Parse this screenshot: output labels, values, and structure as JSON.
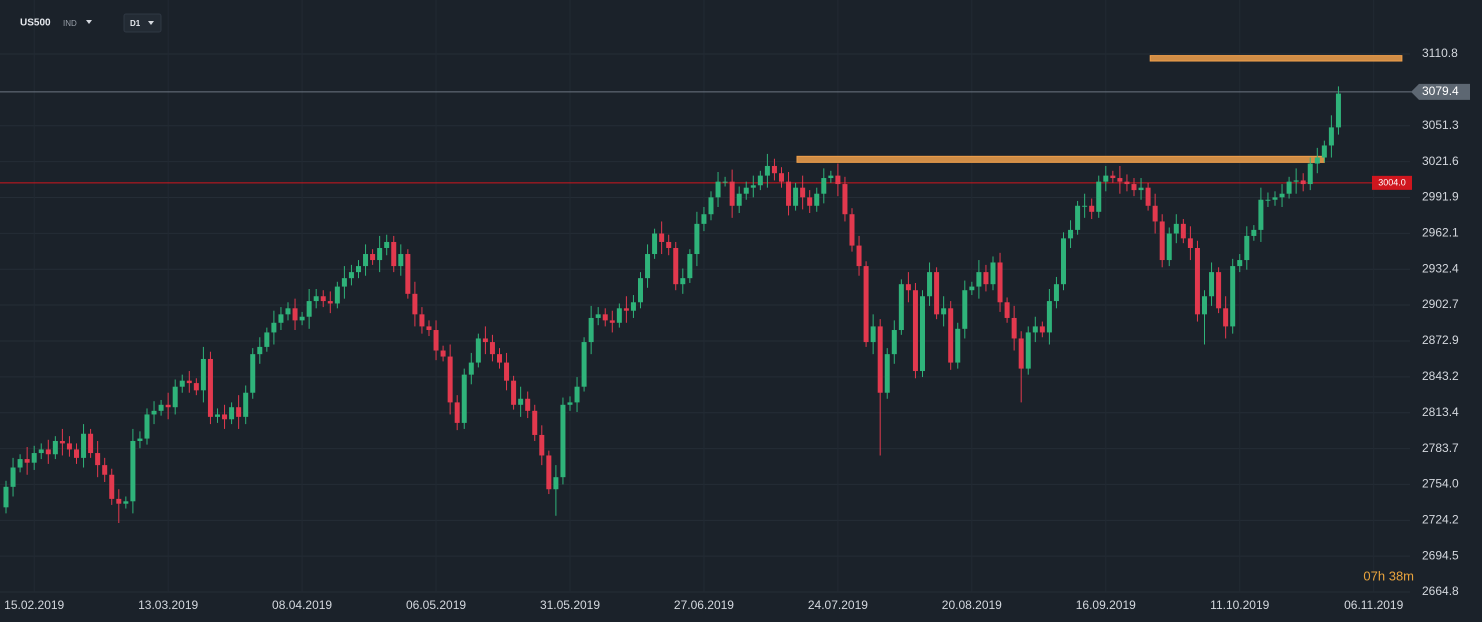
{
  "chart_data": {
    "type": "candlestick",
    "symbol": "US500",
    "instrument_type": "IND",
    "timeframe": "D1",
    "countdown": "07h 38m",
    "up_color": "#2fb37a",
    "down_color": "#e2394e",
    "grid": true,
    "xlim": [
      -0.85,
      199.15
    ],
    "ylim": [
      2664.8,
      3155.6
    ],
    "xticks": [
      {
        "value": 4,
        "label": "15.02.2019"
      },
      {
        "value": 23,
        "label": "13.03.2019"
      },
      {
        "value": 42,
        "label": "08.04.2019"
      },
      {
        "value": 61,
        "label": "06.05.2019"
      },
      {
        "value": 80,
        "label": "31.05.2019"
      },
      {
        "value": 99,
        "label": "27.06.2019"
      },
      {
        "value": 118,
        "label": "24.07.2019"
      },
      {
        "value": 137,
        "label": "20.08.2019"
      },
      {
        "value": 156,
        "label": "16.09.2019"
      },
      {
        "value": 175,
        "label": "11.10.2019"
      },
      {
        "value": 194,
        "label": "06.11.2019"
      }
    ],
    "yticks": [
      3110.8,
      3051.3,
      3021.6,
      2991.9,
      2962.1,
      2932.4,
      2902.7,
      2872.9,
      2843.2,
      2813.4,
      2783.7,
      {
        "value": 2754,
        "label": "2754.0"
      },
      2724.2,
      2694.5,
      2664.8
    ],
    "current_price": 3079.4,
    "alert_level": {
      "value": 3004,
      "label": "3004.0",
      "color": "#d0161e"
    },
    "zones": [
      {
        "top": 3109.5,
        "bottom": 3105,
        "start": 162.3,
        "end": 198,
        "color": "#f0a04b"
      },
      {
        "top": 3026,
        "bottom": 3021,
        "start": 112.2,
        "end": 187,
        "color": "#f0a04b"
      }
    ],
    "ohlc": [
      [
        2735,
        2757,
        2730,
        2752
      ],
      [
        2752,
        2776,
        2744,
        2768
      ],
      [
        2768,
        2779,
        2764,
        2775
      ],
      [
        2775,
        2785,
        2762,
        2772
      ],
      [
        2772,
        2786,
        2766,
        2780
      ],
      [
        2780,
        2788,
        2775,
        2783
      ],
      [
        2783,
        2791,
        2771,
        2779
      ],
      [
        2779,
        2794,
        2775,
        2790
      ],
      [
        2790,
        2800,
        2778,
        2788
      ],
      [
        2788,
        2794,
        2777,
        2783
      ],
      [
        2783,
        2788,
        2771,
        2776
      ],
      [
        2776,
        2804,
        2768,
        2796
      ],
      [
        2796,
        2800,
        2776,
        2780
      ],
      [
        2780,
        2790,
        2760,
        2770
      ],
      [
        2770,
        2776,
        2756,
        2762
      ],
      [
        2762,
        2767,
        2737,
        2742
      ],
      [
        2742,
        2750,
        2722,
        2738
      ],
      [
        2738,
        2744,
        2734,
        2740
      ],
      [
        2740,
        2800,
        2730,
        2790
      ],
      [
        2790,
        2798,
        2784,
        2792
      ],
      [
        2792,
        2817,
        2787,
        2812
      ],
      [
        2812,
        2823,
        2804,
        2815
      ],
      [
        2815,
        2824,
        2811,
        2820
      ],
      [
        2820,
        2830,
        2808,
        2818
      ],
      [
        2818,
        2841,
        2812,
        2835
      ],
      [
        2835,
        2845,
        2830,
        2840
      ],
      [
        2840,
        2848,
        2830,
        2838
      ],
      [
        2838,
        2842,
        2828,
        2832
      ],
      [
        2832,
        2868,
        2822,
        2858
      ],
      [
        2858,
        2864,
        2804,
        2810
      ],
      [
        2810,
        2817,
        2805,
        2812
      ],
      [
        2812,
        2820,
        2800,
        2808
      ],
      [
        2808,
        2822,
        2804,
        2818
      ],
      [
        2818,
        2828,
        2800,
        2810
      ],
      [
        2810,
        2836,
        2804,
        2830
      ],
      [
        2830,
        2867,
        2825,
        2862
      ],
      [
        2862,
        2876,
        2854,
        2868
      ],
      [
        2868,
        2884,
        2864,
        2880
      ],
      [
        2880,
        2898,
        2870,
        2888
      ],
      [
        2888,
        2901,
        2882,
        2895
      ],
      [
        2895,
        2905,
        2890,
        2900
      ],
      [
        2900,
        2908,
        2882,
        2890
      ],
      [
        2890,
        2897,
        2886,
        2893
      ],
      [
        2893,
        2916,
        2883,
        2906
      ],
      [
        2906,
        2916,
        2900,
        2910
      ],
      [
        2910,
        2915,
        2901,
        2906
      ],
      [
        2906,
        2914,
        2896,
        2904
      ],
      [
        2904,
        2922,
        2900,
        2918
      ],
      [
        2918,
        2935,
        2908,
        2925
      ],
      [
        2925,
        2936,
        2919,
        2930
      ],
      [
        2930,
        2940,
        2925,
        2935
      ],
      [
        2935,
        2953,
        2927,
        2945
      ],
      [
        2945,
        2949,
        2936,
        2940
      ],
      [
        2940,
        2960,
        2930,
        2950
      ],
      [
        2950,
        2961,
        2944,
        2955
      ],
      [
        2955,
        2960,
        2930,
        2935
      ],
      [
        2935,
        2953,
        2927,
        2945
      ],
      [
        2945,
        2949,
        2908,
        2912
      ],
      [
        2912,
        2922,
        2885,
        2895
      ],
      [
        2895,
        2901,
        2879,
        2885
      ],
      [
        2885,
        2890,
        2877,
        2882
      ],
      [
        2882,
        2890,
        2857,
        2865
      ],
      [
        2865,
        2869,
        2856,
        2860
      ],
      [
        2860,
        2870,
        2812,
        2822
      ],
      [
        2822,
        2828,
        2799,
        2805
      ],
      [
        2805,
        2850,
        2800,
        2845
      ],
      [
        2845,
        2863,
        2837,
        2855
      ],
      [
        2855,
        2879,
        2851,
        2875
      ],
      [
        2875,
        2885,
        2862,
        2872
      ],
      [
        2872,
        2878,
        2856,
        2862
      ],
      [
        2862,
        2867,
        2850,
        2855
      ],
      [
        2855,
        2863,
        2832,
        2840
      ],
      [
        2840,
        2844,
        2816,
        2820
      ],
      [
        2820,
        2835,
        2810,
        2825
      ],
      [
        2825,
        2831,
        2809,
        2815
      ],
      [
        2815,
        2820,
        2790,
        2795
      ],
      [
        2795,
        2803,
        2770,
        2778
      ],
      [
        2778,
        2782,
        2746,
        2750
      ],
      [
        2750,
        2770,
        2728,
        2760
      ],
      [
        2760,
        2826,
        2754,
        2820
      ],
      [
        2820,
        2827,
        2815,
        2822
      ],
      [
        2822,
        2843,
        2814,
        2835
      ],
      [
        2835,
        2876,
        2831,
        2872
      ],
      [
        2872,
        2902,
        2862,
        2892
      ],
      [
        2892,
        2901,
        2886,
        2895
      ],
      [
        2895,
        2900,
        2885,
        2890
      ],
      [
        2890,
        2898,
        2880,
        2888
      ],
      [
        2888,
        2904,
        2884,
        2900
      ],
      [
        2900,
        2910,
        2888,
        2898
      ],
      [
        2898,
        2911,
        2892,
        2905
      ],
      [
        2905,
        2930,
        2900,
        2925
      ],
      [
        2925,
        2953,
        2917,
        2945
      ],
      [
        2945,
        2966,
        2941,
        2962
      ],
      [
        2962,
        2972,
        2945,
        2955
      ],
      [
        2955,
        2961,
        2944,
        2950
      ],
      [
        2950,
        2955,
        2915,
        2920
      ],
      [
        2920,
        2933,
        2912,
        2925
      ],
      [
        2925,
        2949,
        2921,
        2945
      ],
      [
        2945,
        2980,
        2935,
        2970
      ],
      [
        2970,
        2984,
        2964,
        2978
      ],
      [
        2978,
        2997,
        2973,
        2992
      ],
      [
        2992,
        3013,
        2984,
        3005
      ],
      [
        3005,
        3009,
        3001,
        3005
      ],
      [
        3005,
        3015,
        2975,
        2985
      ],
      [
        2985,
        3001,
        2979,
        2995
      ],
      [
        2995,
        3005,
        2990,
        3000
      ],
      [
        3000,
        3010,
        2992,
        3002
      ],
      [
        3002,
        3014,
        2998,
        3010
      ],
      [
        3010,
        3028,
        3000,
        3018
      ],
      [
        3018,
        3024,
        3006,
        3012
      ],
      [
        3012,
        3017,
        3000,
        3005
      ],
      [
        3005,
        3013,
        2977,
        2985
      ],
      [
        2985,
        3004,
        2981,
        3000
      ],
      [
        3000,
        3010,
        2982,
        2992
      ],
      [
        2992,
        2998,
        2979,
        2985
      ],
      [
        2985,
        3000,
        2980,
        2995
      ],
      [
        2995,
        3016,
        2987,
        3008
      ],
      [
        3008,
        3014,
        3004,
        3010
      ],
      [
        3010,
        3020,
        2993,
        3003
      ],
      [
        3003,
        3009,
        2972,
        2978
      ],
      [
        2978,
        2983,
        2947,
        2952
      ],
      [
        2952,
        2960,
        2927,
        2935
      ],
      [
        2935,
        2939,
        2868,
        2872
      ],
      [
        2872,
        2895,
        2862,
        2885
      ],
      [
        2885,
        2891,
        2778,
        2830
      ],
      [
        2830,
        2867,
        2825,
        2862
      ],
      [
        2862,
        2890,
        2854,
        2882
      ],
      [
        2882,
        2924,
        2878,
        2920
      ],
      [
        2920,
        2930,
        2905,
        2915
      ],
      [
        2915,
        2921,
        2842,
        2848
      ],
      [
        2848,
        2915,
        2843,
        2910
      ],
      [
        2910,
        2938,
        2902,
        2930
      ],
      [
        2930,
        2934,
        2891,
        2895
      ],
      [
        2895,
        2910,
        2885,
        2900
      ],
      [
        2900,
        2906,
        2849,
        2855
      ],
      [
        2855,
        2888,
        2850,
        2883
      ],
      [
        2883,
        2923,
        2875,
        2915
      ],
      [
        2915,
        2922,
        2911,
        2918
      ],
      [
        2918,
        2940,
        2908,
        2930
      ],
      [
        2930,
        2936,
        2914,
        2920
      ],
      [
        2920,
        2943,
        2915,
        2938
      ],
      [
        2938,
        2946,
        2897,
        2905
      ],
      [
        2905,
        2909,
        2888,
        2892
      ],
      [
        2892,
        2902,
        2865,
        2875
      ],
      [
        2875,
        2881,
        2822,
        2850
      ],
      [
        2850,
        2885,
        2845,
        2880
      ],
      [
        2880,
        2893,
        2872,
        2885
      ],
      [
        2885,
        2889,
        2876,
        2880
      ],
      [
        2880,
        2916,
        2870,
        2906
      ],
      [
        2906,
        2926,
        2900,
        2920
      ],
      [
        2920,
        2963,
        2915,
        2958
      ],
      [
        2958,
        2973,
        2950,
        2965
      ],
      [
        2965,
        2989,
        2961,
        2985
      ],
      [
        2985,
        2995,
        2975,
        2985
      ],
      [
        2985,
        2991,
        2974,
        2980
      ],
      [
        2980,
        3010,
        2975,
        3005
      ],
      [
        3005,
        3018,
        2997,
        3010
      ],
      [
        3010,
        3014,
        3004,
        3008
      ],
      [
        3008,
        3018,
        2995,
        3005
      ],
      [
        3005,
        3011,
        2997,
        3003
      ],
      [
        3003,
        3008,
        2993,
        2998
      ],
      [
        2998,
        3008,
        2990,
        3000
      ],
      [
        3000,
        3004,
        2981,
        2985
      ],
      [
        2985,
        2995,
        2962,
        2972
      ],
      [
        2972,
        2978,
        2934,
        2940
      ],
      [
        2940,
        2967,
        2935,
        2962
      ],
      [
        2962,
        2978,
        2954,
        2970
      ],
      [
        2970,
        2974,
        2954,
        2958
      ],
      [
        2958,
        2968,
        2940,
        2950
      ],
      [
        2950,
        2956,
        2889,
        2895
      ],
      [
        2895,
        2915,
        2870,
        2910
      ],
      [
        2910,
        2938,
        2902,
        2930
      ],
      [
        2930,
        2934,
        2896,
        2900
      ],
      [
        2900,
        2910,
        2875,
        2885
      ],
      [
        2885,
        2941,
        2879,
        2935
      ],
      [
        2935,
        2945,
        2930,
        2940
      ],
      [
        2940,
        2968,
        2932,
        2960
      ],
      [
        2960,
        2969,
        2956,
        2965
      ],
      [
        2965,
        3000,
        2955,
        2990
      ],
      [
        2990,
        2996,
        2984,
        2990
      ],
      [
        2990,
        2997,
        2985,
        2992
      ],
      [
        2992,
        3003,
        2984,
        2995
      ],
      [
        2995,
        3009,
        2991,
        3005
      ],
      [
        3005,
        3016,
        2995,
        3006
      ],
      [
        3006,
        3012,
        2997,
        3003
      ],
      [
        3003,
        3025,
        2998,
        3020
      ],
      [
        3020,
        3033,
        3012,
        3025
      ],
      [
        3025,
        3039,
        3021,
        3035
      ],
      [
        3035,
        3060,
        3025,
        3050
      ],
      [
        3050,
        3084,
        3044,
        3078
      ]
    ]
  }
}
